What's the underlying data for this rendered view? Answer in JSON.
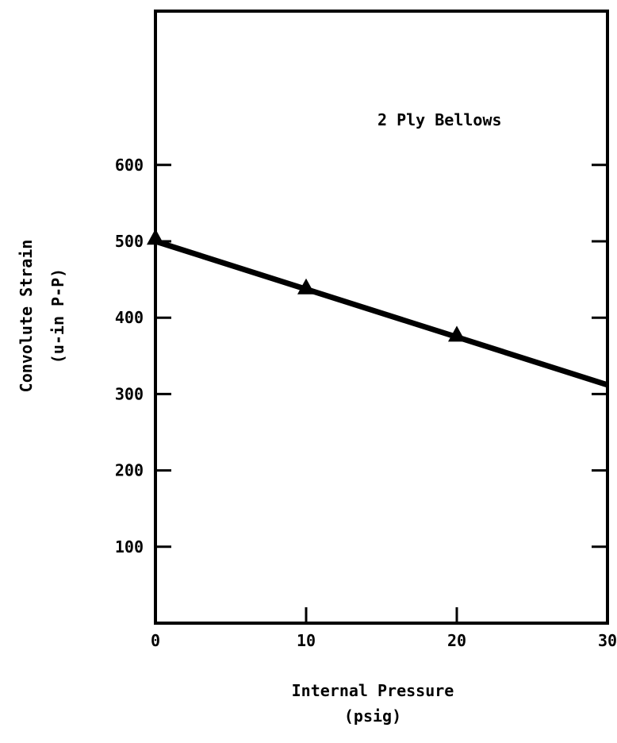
{
  "chart_data": {
    "type": "line",
    "title": "",
    "annotation": "2 Ply Bellows",
    "xlabel": [
      "Internal Pressure",
      "(psig)"
    ],
    "ylabel": [
      "Convolute Strain",
      "(u-in  P-P)"
    ],
    "xlim": [
      0,
      30
    ],
    "ylim": [
      0,
      800
    ],
    "xticks": [
      0,
      10,
      20,
      30
    ],
    "xtick_labels": [
      "0",
      "10",
      "20",
      "30"
    ],
    "yticks": [
      100,
      200,
      300,
      400,
      500,
      600
    ],
    "ytick_labels": [
      "100",
      "200",
      "300",
      "400",
      "500",
      "600"
    ],
    "grid": false,
    "series": [
      {
        "marker": "triangle",
        "points": [
          {
            "x": 0,
            "y": 505
          },
          {
            "x": 10,
            "y": 440
          },
          {
            "x": 20,
            "y": 378
          }
        ],
        "fit_line": {
          "x": [
            0,
            30
          ],
          "y": [
            500,
            312
          ]
        }
      }
    ]
  }
}
